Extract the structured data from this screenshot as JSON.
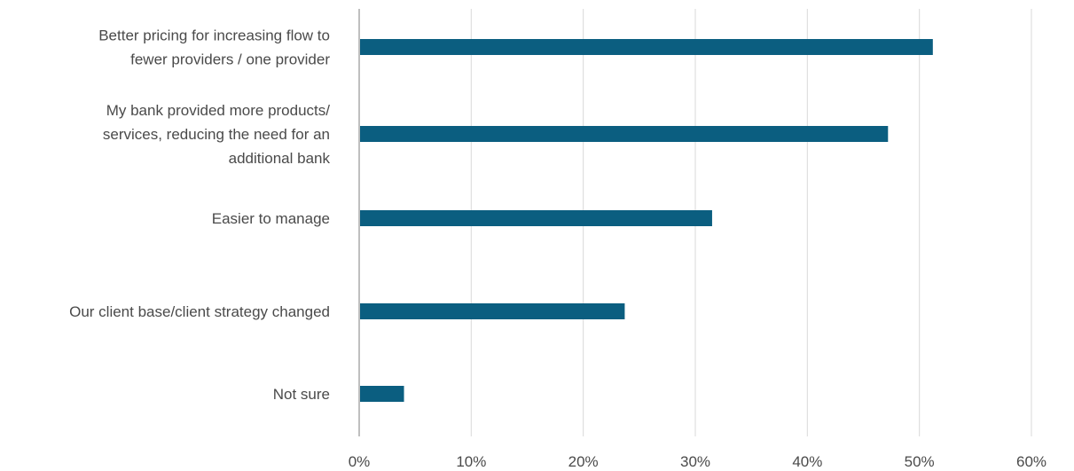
{
  "chart_data": {
    "type": "bar",
    "orientation": "horizontal",
    "categories": [
      [
        "Better pricing for increasing flow to",
        "fewer providers / one provider"
      ],
      [
        "My bank provided more products/",
        "services, reducing the need for an",
        "additional bank"
      ],
      [
        "Easier to manage"
      ],
      [
        "Our client base/client strategy changed"
      ],
      [
        "Not sure"
      ]
    ],
    "values": [
      51.2,
      47.2,
      31.5,
      23.7,
      4.0
    ],
    "xlim": [
      0,
      60
    ],
    "xticks": [
      0,
      10,
      20,
      30,
      40,
      50,
      60
    ],
    "tick_format": "{v}%",
    "grid": true,
    "bar_color": "#0b5e80",
    "title": "",
    "xlabel": "",
    "ylabel": ""
  }
}
